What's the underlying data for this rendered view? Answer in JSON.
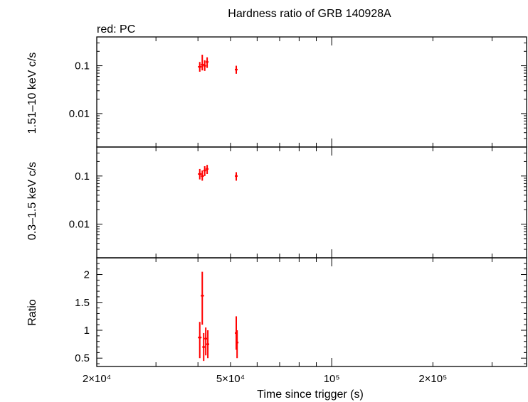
{
  "chart_data": {
    "type": "scatter",
    "title": "Hardness ratio of GRB 140928A",
    "legend_text": "red: PC",
    "colors": {
      "pc": "#ff0000"
    },
    "xlabel": "Time since trigger (s)",
    "xscale": "log",
    "xlim": [
      20000,
      380000
    ],
    "xticks": [
      {
        "value": 20000,
        "label": "2×10⁴"
      },
      {
        "value": 50000,
        "label": "5×10⁴"
      },
      {
        "value": 100000,
        "label": "10⁵"
      },
      {
        "value": 200000,
        "label": "2×10⁵"
      }
    ],
    "panels": [
      {
        "ylabel": "1.51–10 keV c/s",
        "yscale": "log",
        "ylim": [
          0.002,
          0.4
        ],
        "yticks": [
          {
            "value": 0.1,
            "label": "0.1"
          },
          {
            "value": 0.01,
            "label": "0.01"
          }
        ],
        "points": [
          {
            "x": 40500,
            "y": 0.095,
            "ylo": 0.075,
            "yhi": 0.12,
            "xlo": 40000,
            "xhi": 41000
          },
          {
            "x": 41200,
            "y": 0.105,
            "ylo": 0.08,
            "yhi": 0.17,
            "xlo": 40800,
            "xhi": 41700
          },
          {
            "x": 41900,
            "y": 0.1,
            "ylo": 0.078,
            "yhi": 0.13,
            "xlo": 41500,
            "xhi": 42300
          },
          {
            "x": 42600,
            "y": 0.12,
            "ylo": 0.09,
            "yhi": 0.15,
            "xlo": 42200,
            "xhi": 43000
          },
          {
            "x": 52000,
            "y": 0.083,
            "ylo": 0.068,
            "yhi": 0.1,
            "xlo": 51500,
            "xhi": 52500
          }
        ]
      },
      {
        "ylabel": "0.3–1.5 keV c/s",
        "yscale": "log",
        "ylim": [
          0.002,
          0.4
        ],
        "yticks": [
          {
            "value": 0.1,
            "label": "0.1"
          },
          {
            "value": 0.01,
            "label": "0.01"
          }
        ],
        "points": [
          {
            "x": 40500,
            "y": 0.11,
            "ylo": 0.085,
            "yhi": 0.14,
            "xlo": 40000,
            "xhi": 41000
          },
          {
            "x": 41200,
            "y": 0.1,
            "ylo": 0.08,
            "yhi": 0.13,
            "xlo": 40800,
            "xhi": 41700
          },
          {
            "x": 41900,
            "y": 0.13,
            "ylo": 0.1,
            "yhi": 0.16,
            "xlo": 41500,
            "xhi": 42300
          },
          {
            "x": 42600,
            "y": 0.14,
            "ylo": 0.11,
            "yhi": 0.17,
            "xlo": 42200,
            "xhi": 43000
          },
          {
            "x": 52000,
            "y": 0.1,
            "ylo": 0.08,
            "yhi": 0.12,
            "xlo": 51500,
            "xhi": 52500
          }
        ]
      },
      {
        "ylabel": "Ratio",
        "yscale": "linear",
        "ylim": [
          0.35,
          2.3
        ],
        "yticks": [
          {
            "value": 2,
            "label": "2"
          },
          {
            "value": 1.5,
            "label": "1.5"
          },
          {
            "value": 1,
            "label": "1"
          },
          {
            "value": 0.5,
            "label": "0.5"
          }
        ],
        "points": [
          {
            "x": 40500,
            "y": 0.87,
            "ylo": 0.5,
            "yhi": 1.15,
            "xlo": 40000,
            "xhi": 41000
          },
          {
            "x": 41200,
            "y": 1.62,
            "ylo": 1.1,
            "yhi": 2.05,
            "xlo": 40800,
            "xhi": 41700
          },
          {
            "x": 41600,
            "y": 0.7,
            "ylo": 0.45,
            "yhi": 0.95,
            "xlo": 41200,
            "xhi": 42000
          },
          {
            "x": 42200,
            "y": 0.85,
            "ylo": 0.55,
            "yhi": 1.05,
            "xlo": 41800,
            "xhi": 42600
          },
          {
            "x": 42800,
            "y": 0.75,
            "ylo": 0.5,
            "yhi": 1.0,
            "xlo": 42400,
            "xhi": 43200
          },
          {
            "x": 52000,
            "y": 0.95,
            "ylo": 0.65,
            "yhi": 1.25,
            "xlo": 51500,
            "xhi": 52500
          },
          {
            "x": 52300,
            "y": 0.78,
            "ylo": 0.5,
            "yhi": 1.0,
            "xlo": 51800,
            "xhi": 52800
          }
        ]
      }
    ]
  }
}
